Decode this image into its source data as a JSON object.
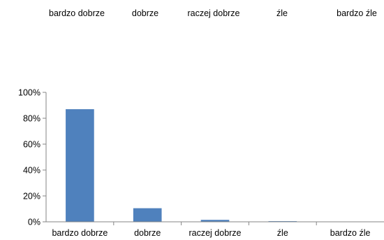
{
  "chart_data": [
    {
      "type": "bar",
      "partial": true,
      "categories": [
        "bardzo dobrze",
        "dobrze",
        "raczej dobrze",
        "źle",
        "bardzo źle"
      ],
      "title": "",
      "xlabel": "",
      "ylabel": ""
    },
    {
      "type": "bar",
      "categories": [
        "bardzo dobrze",
        "dobrze",
        "raczej dobrze",
        "źle",
        "bardzo źle"
      ],
      "values": [
        87,
        10.5,
        1.5,
        0.5,
        0
      ],
      "ylim": [
        0,
        100
      ],
      "yticks": [
        "0%",
        "20%",
        "40%",
        "60%",
        "80%",
        "100%"
      ],
      "title": "",
      "xlabel": "",
      "ylabel": "",
      "grid": false,
      "bar_color": "#4f81bd"
    }
  ]
}
